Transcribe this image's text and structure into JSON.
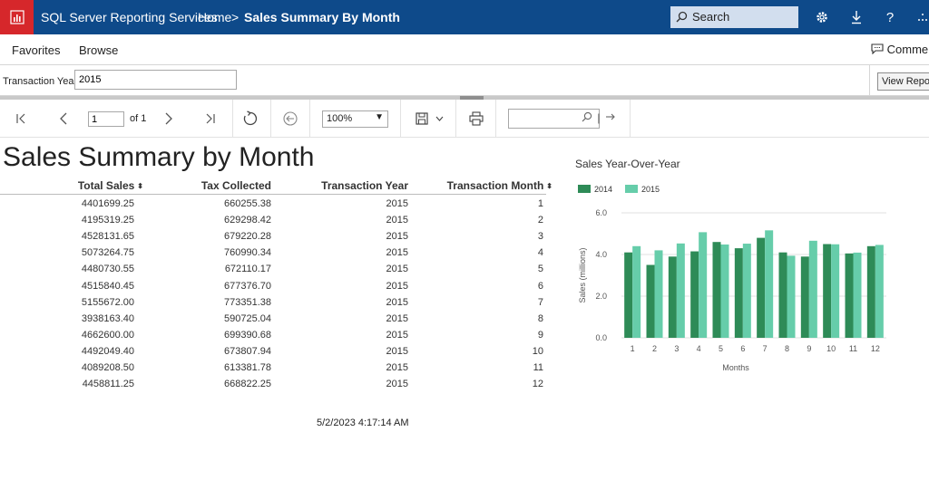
{
  "header": {
    "app_title": "SQL Server Reporting Services",
    "breadcrumb_home": "Home",
    "breadcrumb_sep": ">",
    "breadcrumb_current": "Sales Summary By Month",
    "search_placeholder": "Search",
    "icons": [
      "search-icon",
      "gear-icon",
      "download-icon",
      "help-icon",
      "more-icon"
    ]
  },
  "nav": {
    "favorites": "Favorites",
    "browse": "Browse",
    "comments": "Comments"
  },
  "params": {
    "label": "Transaction Year:",
    "value": "2015",
    "view_report": "View Report"
  },
  "toolbar": {
    "page_value": "1",
    "of_label": "of 1",
    "zoom": "100%"
  },
  "report": {
    "title": "Sales Summary by Month",
    "columns": [
      "Total Sales",
      "Tax Collected",
      "Transaction Year",
      "Transaction Month"
    ],
    "rows": [
      [
        "4401699.25",
        "660255.38",
        "2015",
        "1"
      ],
      [
        "4195319.25",
        "629298.42",
        "2015",
        "2"
      ],
      [
        "4528131.65",
        "679220.28",
        "2015",
        "3"
      ],
      [
        "5073264.75",
        "760990.34",
        "2015",
        "4"
      ],
      [
        "4480730.55",
        "672110.17",
        "2015",
        "5"
      ],
      [
        "4515840.45",
        "677376.70",
        "2015",
        "6"
      ],
      [
        "5155672.00",
        "773351.38",
        "2015",
        "7"
      ],
      [
        "3938163.40",
        "590725.04",
        "2015",
        "8"
      ],
      [
        "4662600.00",
        "699390.68",
        "2015",
        "9"
      ],
      [
        "4492049.40",
        "673807.94",
        "2015",
        "10"
      ],
      [
        "4089208.50",
        "613381.78",
        "2015",
        "11"
      ],
      [
        "4458811.25",
        "668822.25",
        "2015",
        "12"
      ]
    ],
    "timestamp": "5/2/2023 4:17:14 AM"
  },
  "chart_data": {
    "type": "bar",
    "title": "Sales Year-Over-Year",
    "xlabel": "Months",
    "ylabel": "Sales (millions)",
    "categories": [
      "1",
      "2",
      "3",
      "4",
      "5",
      "6",
      "7",
      "8",
      "9",
      "10",
      "11",
      "12"
    ],
    "y_ticks": [
      "0.0",
      "2.0",
      "4.0",
      "6.0"
    ],
    "ylim": [
      0,
      6
    ],
    "grid": true,
    "legend": "top-left",
    "series": [
      {
        "name": "2014",
        "color": "#2e8b57",
        "values": [
          4.1,
          3.5,
          3.9,
          4.15,
          4.6,
          4.3,
          4.8,
          4.1,
          3.9,
          4.5,
          4.05,
          4.4
        ]
      },
      {
        "name": "2015",
        "color": "#66cdaa",
        "values": [
          4.4,
          4.2,
          4.53,
          5.07,
          4.48,
          4.52,
          5.16,
          3.94,
          4.66,
          4.49,
          4.09,
          4.46
        ]
      }
    ]
  }
}
